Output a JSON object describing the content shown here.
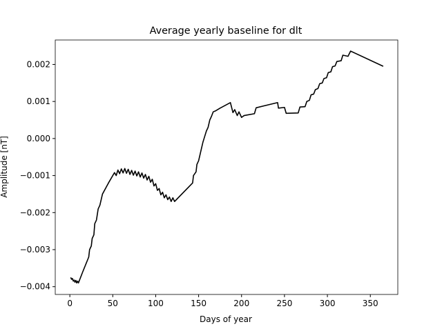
{
  "chart_data": {
    "type": "line",
    "title": "Average yearly baseline for dlt",
    "xlabel": "Days of year",
    "ylabel": "Amplitude [nT]",
    "xlim": [
      -17,
      382
    ],
    "ylim": [
      -0.00421,
      0.00266
    ],
    "xticks": [
      0,
      50,
      100,
      150,
      200,
      250,
      300,
      350
    ],
    "yticks": [
      {
        "value": -0.004,
        "label": "−0.004"
      },
      {
        "value": -0.003,
        "label": "−0.003"
      },
      {
        "value": -0.002,
        "label": "−0.002"
      },
      {
        "value": -0.001,
        "label": "−0.001"
      },
      {
        "value": 0,
        "label": "0.000"
      },
      0.001,
      0.002
    ],
    "series": [
      {
        "color": "#000000",
        "x": [
          1,
          2,
          3,
          4,
          5,
          6,
          7,
          8,
          9,
          10,
          15,
          22,
          23,
          25,
          26,
          28,
          29,
          31,
          33,
          35,
          37,
          38,
          45,
          52,
          54,
          56,
          58,
          60,
          62,
          64,
          66,
          68,
          70,
          72,
          74,
          76,
          78,
          80,
          82,
          84,
          86,
          88,
          90,
          92,
          94,
          96,
          98,
          100,
          102,
          104,
          106,
          108,
          110,
          112,
          114,
          116,
          118,
          120,
          122,
          143,
          144,
          147,
          148,
          150,
          152,
          153,
          155,
          157,
          159,
          161,
          163,
          165,
          167,
          170,
          175,
          187,
          190,
          192,
          195,
          197,
          200,
          203,
          215,
          217,
          242,
          243,
          250,
          252,
          266,
          268,
          274,
          276,
          279,
          281,
          284,
          286,
          289,
          291,
          294,
          296,
          299,
          301,
          304,
          306,
          309,
          311,
          316,
          318,
          324,
          327,
          365
        ],
        "values": [
          -0.00375,
          -0.0038,
          -0.00378,
          -0.00385,
          -0.00382,
          -0.00388,
          -0.00383,
          -0.0039,
          -0.00385,
          -0.0039,
          -0.0036,
          -0.0032,
          -0.003,
          -0.0029,
          -0.0027,
          -0.0026,
          -0.0023,
          -0.0022,
          -0.0019,
          -0.0018,
          -0.0016,
          -0.0015,
          -0.0012,
          -0.00092,
          -0.001,
          -0.00085,
          -0.00095,
          -0.00082,
          -0.00093,
          -0.00081,
          -0.00094,
          -0.00083,
          -0.00097,
          -0.00086,
          -0.00099,
          -0.00088,
          -0.00101,
          -0.0009,
          -0.00104,
          -0.00093,
          -0.00107,
          -0.00097,
          -0.00112,
          -0.00102,
          -0.00118,
          -0.0011,
          -0.00128,
          -0.00122,
          -0.0014,
          -0.00135,
          -0.00152,
          -0.00145,
          -0.0016,
          -0.00152,
          -0.00165,
          -0.00158,
          -0.0017,
          -0.0016,
          -0.0017,
          -0.0012,
          -0.001,
          -0.0009,
          -0.0007,
          -0.0006,
          -0.0004,
          -0.0003,
          -0.0001,
          5e-05,
          0.0002,
          0.0003,
          0.0005,
          0.0006,
          0.00072,
          0.00075,
          0.00082,
          0.00097,
          0.0007,
          0.00078,
          0.00062,
          0.00072,
          0.00057,
          0.00062,
          0.00067,
          0.00083,
          0.00097,
          0.00082,
          0.00084,
          0.00068,
          0.00069,
          0.00085,
          0.00086,
          0.001,
          0.00103,
          0.00118,
          0.0012,
          0.00132,
          0.00135,
          0.00148,
          0.0015,
          0.00162,
          0.00164,
          0.00178,
          0.0018,
          0.00194,
          0.00196,
          0.00208,
          0.0021,
          0.00225,
          0.00222,
          0.00236,
          0.00195
        ]
      }
    ]
  }
}
